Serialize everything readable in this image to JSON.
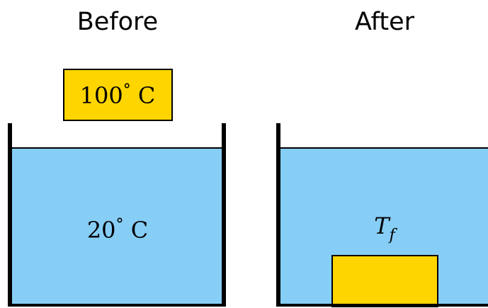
{
  "headings": {
    "before": "Before",
    "after": "After"
  },
  "before_panel": {
    "block_temperature": "100",
    "water_temperature": "20",
    "degree_symbol": "°",
    "unit": "C"
  },
  "after_panel": {
    "final_temperature_symbol": "T",
    "final_temperature_subscript": "f"
  },
  "colors": {
    "water": "#87CEF6",
    "block": "#FFD500",
    "outline": "#000000"
  }
}
